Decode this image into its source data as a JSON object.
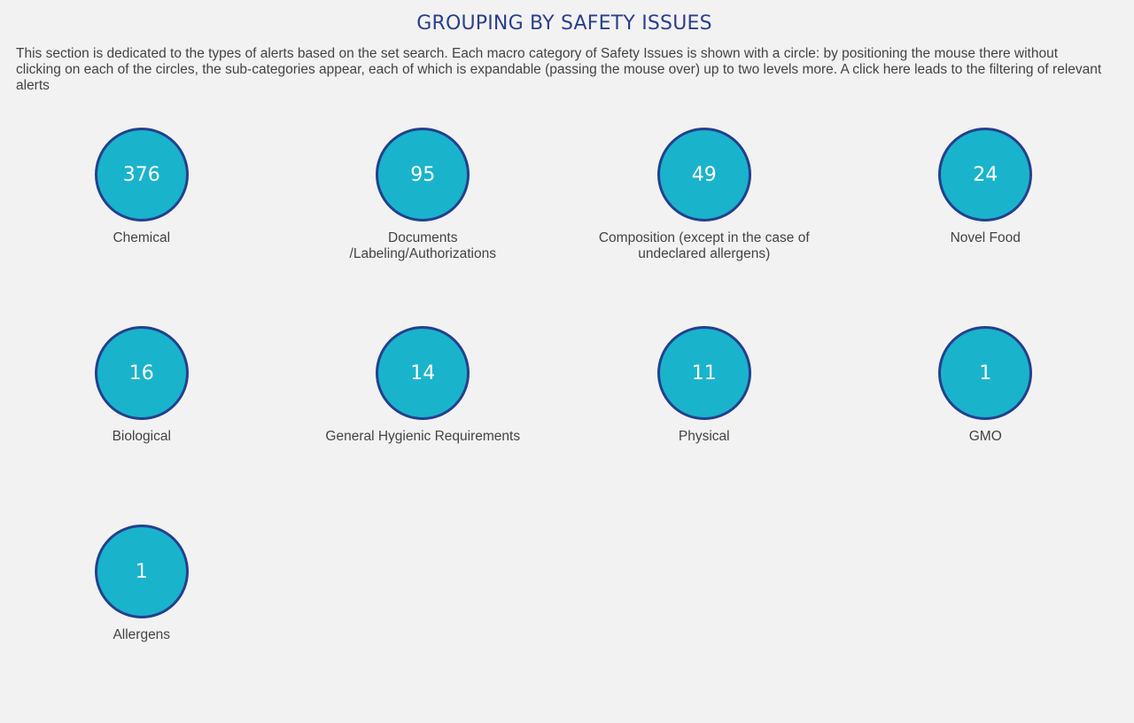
{
  "header": {
    "title": "GROUPING BY SAFETY ISSUES",
    "description": "This section is dedicated to the types of alerts based on the set search. Each macro category of Safety Issues is shown with a circle: by positioning the mouse there without clicking on each of the circles, the sub-categories appear, each of which is expandable (passing the mouse over) up to two levels more. A click here leads to the filtering of relevant alerts"
  },
  "colors": {
    "circle_fill": "#1ab3cc",
    "circle_border": "#23408e",
    "title": "#2b3f8a"
  },
  "categories": [
    {
      "count": "376",
      "label": "Chemical"
    },
    {
      "count": "95",
      "label": "Documents /Labeling/Authorizations"
    },
    {
      "count": "49",
      "label": "Composition (except in the case of undeclared allergens)"
    },
    {
      "count": "24",
      "label": "Novel Food"
    },
    {
      "count": "16",
      "label": "Biological"
    },
    {
      "count": "14",
      "label": "General Hygienic Requirements"
    },
    {
      "count": "11",
      "label": "Physical"
    },
    {
      "count": "1",
      "label": "GMO"
    },
    {
      "count": "1",
      "label": "Allergens"
    }
  ]
}
